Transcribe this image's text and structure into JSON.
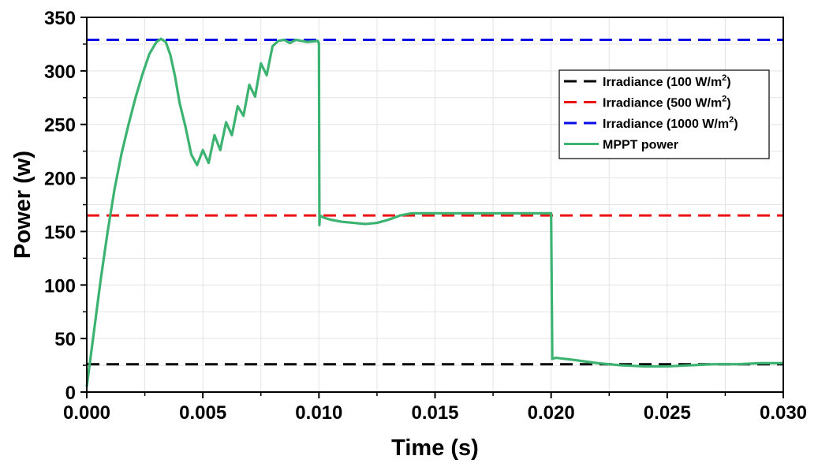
{
  "chart_data": {
    "type": "line",
    "title": "",
    "xlabel": "Time (s)",
    "ylabel": "Power (w)",
    "xlim": [
      0,
      0.03
    ],
    "ylim": [
      0,
      350
    ],
    "xticks": [
      0,
      0.005,
      0.01,
      0.015,
      0.02,
      0.025,
      0.03
    ],
    "xtick_labels": [
      "0.000",
      "0.005",
      "0.010",
      "0.015",
      "0.020",
      "0.025",
      "0.030"
    ],
    "yticks": [
      0,
      50,
      100,
      150,
      200,
      250,
      300,
      350
    ],
    "ytick_labels": [
      "0",
      "50",
      "100",
      "150",
      "200",
      "250",
      "300",
      "350"
    ],
    "grid": true,
    "legend_position": "top-right",
    "series": [
      {
        "name": "Irradiance (100 W/m2)",
        "label_base": "Irradiance (100 W/m",
        "label_sup": "2",
        "label_end": ")",
        "color": "#000000",
        "style": "dashed",
        "x": [
          0,
          0.03
        ],
        "y": [
          26,
          26
        ]
      },
      {
        "name": "Irradiance (500 W/m2)",
        "label_base": "Irradiance (500 W/m",
        "label_sup": "2",
        "label_end": ")",
        "color": "#ee1111",
        "style": "dashed",
        "x": [
          0,
          0.03
        ],
        "y": [
          165,
          165
        ]
      },
      {
        "name": "Irradiance (1000 W/m2)",
        "label_base": "Irradiance (1000 W/m",
        "label_sup": "2",
        "label_end": ")",
        "color": "#0a0ae6",
        "style": "dashed",
        "x": [
          0,
          0.03
        ],
        "y": [
          329,
          329
        ]
      },
      {
        "name": "MPPT power",
        "label_base": "MPPT power",
        "label_sup": "",
        "label_end": "",
        "color": "#3cb371",
        "style": "solid",
        "x": [
          0,
          0.0003,
          0.0006,
          0.0009,
          0.0012,
          0.0015,
          0.0018,
          0.0021,
          0.0024,
          0.0027,
          0.003,
          0.0032,
          0.0034,
          0.0036,
          0.0038,
          0.004,
          0.00425,
          0.0045,
          0.00475,
          0.005,
          0.00525,
          0.0055,
          0.00575,
          0.006,
          0.00625,
          0.0065,
          0.00675,
          0.007,
          0.00725,
          0.0075,
          0.00775,
          0.008,
          0.00825,
          0.0085,
          0.00875,
          0.009,
          0.0095,
          0.00995,
          0.01,
          0.01002,
          0.01004,
          0.0102,
          0.0105,
          0.011,
          0.0115,
          0.012,
          0.0125,
          0.013,
          0.0135,
          0.014,
          0.015,
          0.016,
          0.017,
          0.018,
          0.019,
          0.0199,
          0.02,
          0.02005,
          0.0202,
          0.021,
          0.022,
          0.023,
          0.024,
          0.025,
          0.026,
          0.027,
          0.028,
          0.029,
          0.03
        ],
        "y": [
          5,
          55,
          105,
          150,
          190,
          223,
          250,
          275,
          297,
          316,
          327,
          330,
          327,
          315,
          295,
          270,
          248,
          222,
          212,
          226,
          214,
          240,
          226,
          252,
          240,
          267,
          258,
          287,
          276,
          307,
          296,
          323,
          328,
          329,
          326,
          329,
          327,
          328,
          326,
          156,
          165,
          163,
          161,
          159,
          158,
          157,
          158,
          161,
          165,
          167,
          167,
          167,
          167,
          167,
          167,
          167,
          167,
          31,
          32,
          30,
          27,
          25,
          24,
          24,
          25,
          26,
          26,
          27,
          27
        ]
      }
    ]
  }
}
